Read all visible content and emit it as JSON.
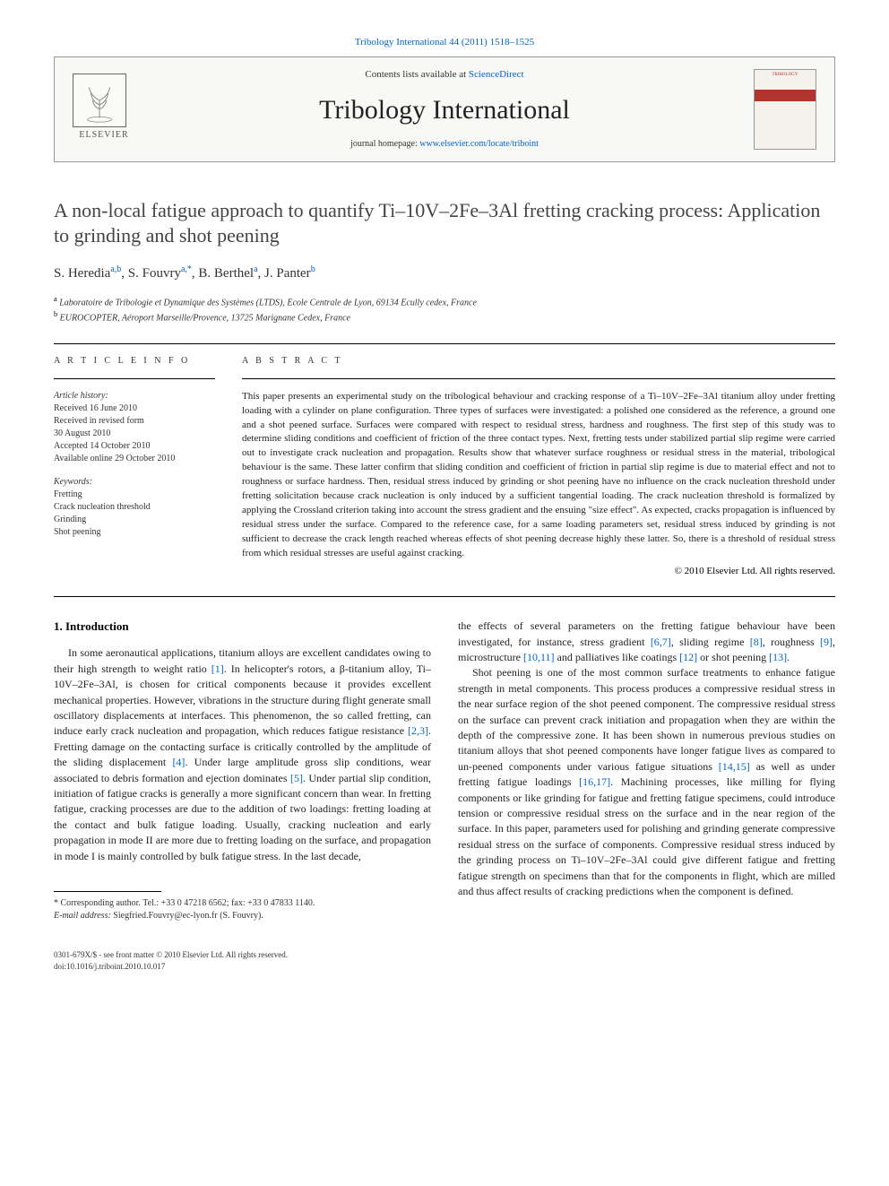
{
  "topLink": "Tribology International 44 (2011) 1518–1525",
  "header": {
    "contentsLine": "Contents lists available at ",
    "contentsLink": "ScienceDirect",
    "journalTitle": "Tribology International",
    "homepageLine": "journal homepage: ",
    "homepageLink": "www.elsevier.com/locate/triboint",
    "elsevierLabel": "ELSEVIER",
    "coverText": "TRIBOLOGY"
  },
  "paper": {
    "title": "A non-local fatigue approach to quantify Ti–10V–2Fe–3Al fretting cracking process: Application to grinding and shot peening",
    "authorsHtml": "S. Heredia",
    "authors": [
      {
        "name": "S. Heredia",
        "aff": "a,b"
      },
      {
        "name": "S. Fouvry",
        "aff": "a,*",
        "corr": true
      },
      {
        "name": "B. Berthel",
        "aff": "a"
      },
      {
        "name": "J. Panter",
        "aff": "b"
      }
    ],
    "affiliations": [
      {
        "sup": "a",
        "text": "Laboratoire de Tribologie et Dynamique des Systèmes (LTDS), Ecole Centrale de Lyon, 69134 Ecully cedex, France"
      },
      {
        "sup": "b",
        "text": "EUROCOPTER, Aéroport Marseille/Provence, 13725 Marignane Cedex, France"
      }
    ]
  },
  "articleInfo": {
    "sectionLabel": "A R T I C L E  I N F O",
    "historyLabel": "Article history:",
    "history": [
      "Received 16 June 2010",
      "Received in revised form",
      "30 August 2010",
      "Accepted 14 October 2010",
      "Available online 29 October 2010"
    ],
    "keywordsLabel": "Keywords:",
    "keywords": [
      "Fretting",
      "Crack nucleation threshold",
      "Grinding",
      "Shot peening"
    ]
  },
  "abstract": {
    "sectionLabel": "A B S T R A C T",
    "text": "This paper presents an experimental study on the tribological behaviour and cracking response of a Ti–10V–2Fe–3Al titanium alloy under fretting loading with a cylinder on plane configuration. Three types of surfaces were investigated: a polished one considered as the reference, a ground one and a shot peened surface. Surfaces were compared with respect to residual stress, hardness and roughness. The first step of this study was to determine sliding conditions and coefficient of friction of the three contact types. Next, fretting tests under stabilized partial slip regime were carried out to investigate crack nucleation and propagation. Results show that whatever surface roughness or residual stress in the material, tribological behaviour is the same. These latter confirm that sliding condition and coefficient of friction in partial slip regime is due to material effect and not to roughness or surface hardness. Then, residual stress induced by grinding or shot peening have no influence on the crack nucleation threshold under fretting solicitation because crack nucleation is only induced by a sufficient tangential loading. The crack nucleation threshold is formalized by applying the Crossland criterion taking into account the stress gradient and the ensuing \"size effect\". As expected, cracks propagation is influenced by residual stress under the surface. Compared to the reference case, for a same loading parameters set, residual stress induced by grinding is not sufficient to decrease the crack length reached whereas effects of shot peening decrease highly these latter. So, there is a threshold of residual stress from which residual stresses are useful against cracking.",
    "copyright": "© 2010 Elsevier Ltd. All rights reserved."
  },
  "body": {
    "introTitle": "1. Introduction",
    "col1": "In some aeronautical applications, titanium alloys are excellent candidates owing to their high strength to weight ratio [1]. In helicopter's rotors, a β-titanium alloy, Ti–10V–2Fe–3Al, is chosen for critical components because it provides excellent mechanical properties. However, vibrations in the structure during flight generate small oscillatory displacements at interfaces. This phenomenon, the so called fretting, can induce early crack nucleation and propagation, which reduces fatigue resistance [2,3]. Fretting damage on the contacting surface is critically controlled by the amplitude of the sliding displacement [4]. Under large amplitude gross slip conditions, wear associated to debris formation and ejection dominates [5]. Under partial slip condition, initiation of fatigue cracks is generally a more significant concern than wear. In fretting fatigue, cracking processes are due to the addition of two loadings: fretting loading at the contact and bulk fatigue loading. Usually, cracking nucleation and early propagation in mode II are more due to fretting loading on the surface, and propagation in mode I is mainly controlled by bulk fatigue stress. In the last decade,",
    "col2a": "the effects of several parameters on the fretting fatigue behaviour have been investigated, for instance, stress gradient [6,7], sliding regime [8], roughness [9], microstructure [10,11] and palliatives like coatings [12] or shot peening [13].",
    "col2b": "Shot peening is one of the most common surface treatments to enhance fatigue strength in metal components. This process produces a compressive residual stress in the near surface region of the shot peened component. The compressive residual stress on the surface can prevent crack initiation and propagation when they are within the depth of the compressive zone. It has been shown in numerous previous studies on titanium alloys that shot peened components have longer fatigue lives as compared to un-peened components under various fatigue situations [14,15] as well as under fretting fatigue loadings [16,17]. Machining processes, like milling for flying components or like grinding for fatigue and fretting fatigue specimens, could introduce tension or compressive residual stress on the surface and in the near region of the surface. In this paper, parameters used for polishing and grinding generate compressive residual stress on the surface of components. Compressive residual stress induced by the grinding process on Ti–10V–2Fe–3Al could give different fatigue and fretting fatigue strength on specimens than that for the components in flight, which are milled and thus affect results of cracking predictions when the component is defined."
  },
  "footnote": {
    "corr": "* Corresponding author. Tel.: +33 0 47218 6562; fax: +33 0 47833 1140.",
    "emailLabel": "E-mail address: ",
    "email": "Siegfried.Fouvry@ec-lyon.fr",
    "emailSuffix": " (S. Fouvry)."
  },
  "footer": {
    "issn": "0301-679X/$ - see front matter © 2010 Elsevier Ltd. All rights reserved.",
    "doi": "doi:10.1016/j.triboint.2010.10.017"
  },
  "refs": {
    "r1": "[1]",
    "r23": "[2,3]",
    "r4": "[4]",
    "r5": "[5]",
    "r67": "[6,7]",
    "r8": "[8]",
    "r9": "[9]",
    "r1011": "[10,11]",
    "r12": "[12]",
    "r13": "[13]",
    "r1415": "[14,15]",
    "r1617": "[16,17]"
  }
}
